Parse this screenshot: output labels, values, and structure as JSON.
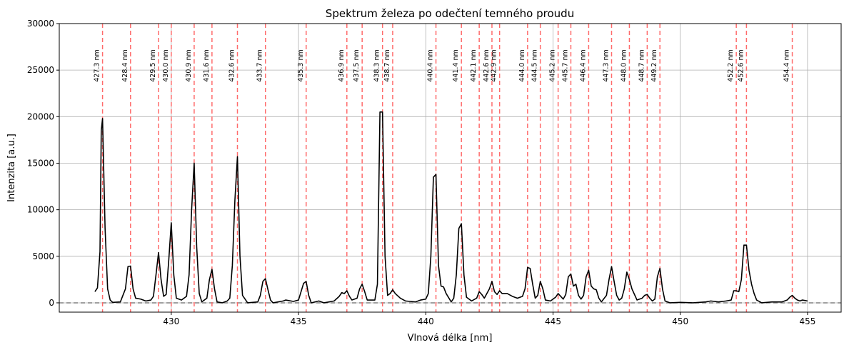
{
  "chart_data": {
    "type": "line",
    "title": "Spektrum železa po odečtení temného proudu",
    "xlabel": "Vlnová délka [nm]",
    "ylabel": "Intenzita [a.u.]",
    "color": "#000000",
    "x": [
      427.0,
      427.1,
      427.2,
      427.25,
      427.3,
      427.4,
      427.5,
      427.6,
      427.7,
      428.0,
      428.2,
      428.3,
      428.4,
      428.5,
      428.6,
      428.8,
      429.0,
      429.2,
      429.3,
      429.4,
      429.5,
      429.6,
      429.7,
      429.8,
      429.9,
      430.0,
      430.1,
      430.2,
      430.4,
      430.6,
      430.7,
      430.8,
      430.9,
      431.0,
      431.1,
      431.2,
      431.4,
      431.5,
      431.6,
      431.7,
      431.8,
      432.0,
      432.2,
      432.3,
      432.4,
      432.5,
      432.6,
      432.7,
      432.8,
      433.0,
      433.4,
      433.5,
      433.6,
      433.7,
      433.8,
      433.9,
      434.0,
      434.4,
      434.5,
      434.8,
      435.0,
      435.1,
      435.2,
      435.3,
      435.4,
      435.5,
      435.8,
      436.0,
      436.4,
      436.6,
      436.7,
      436.8,
      436.9,
      437.0,
      437.1,
      437.3,
      437.4,
      437.5,
      437.6,
      437.7,
      438.0,
      438.1,
      438.2,
      438.3,
      438.4,
      438.5,
      438.6,
      438.7,
      438.8,
      439.0,
      439.2,
      439.6,
      439.8,
      440.0,
      440.1,
      440.2,
      440.3,
      440.4,
      440.5,
      440.6,
      440.7,
      440.8,
      441.0,
      441.1,
      441.2,
      441.3,
      441.4,
      441.5,
      441.6,
      441.8,
      442.0,
      442.1,
      442.2,
      442.3,
      442.5,
      442.6,
      442.7,
      442.8,
      442.9,
      443.0,
      443.2,
      443.4,
      443.6,
      443.8,
      443.9,
      444.0,
      444.1,
      444.2,
      444.3,
      444.4,
      444.5,
      444.6,
      444.7,
      444.9,
      445.1,
      445.2,
      445.3,
      445.4,
      445.5,
      445.6,
      445.7,
      445.8,
      445.9,
      446.0,
      446.1,
      446.2,
      446.3,
      446.4,
      446.5,
      446.6,
      446.7,
      446.8,
      446.9,
      447.1,
      447.2,
      447.3,
      447.4,
      447.5,
      447.6,
      447.7,
      447.8,
      447.9,
      448.0,
      448.1,
      448.2,
      448.3,
      448.5,
      448.6,
      448.7,
      448.8,
      448.9,
      449.0,
      449.1,
      449.2,
      449.3,
      449.4,
      449.6,
      450.0,
      450.5,
      451.0,
      451.2,
      451.5,
      451.8,
      452.0,
      452.1,
      452.2,
      452.3,
      452.4,
      452.5,
      452.6,
      452.7,
      452.8,
      452.9,
      453.0,
      453.2,
      453.6,
      454.0,
      454.2,
      454.3,
      454.4,
      454.5,
      454.6,
      454.7,
      454.8,
      455.0
    ],
    "values": [
      1200,
      1600,
      5500,
      18500,
      19800,
      8000,
      1500,
      300,
      50,
      100,
      1500,
      3900,
      3950,
      1500,
      500,
      400,
      200,
      300,
      700,
      3000,
      5400,
      2500,
      700,
      900,
      4500,
      8600,
      3000,
      500,
      300,
      700,
      3000,
      10000,
      15000,
      6000,
      1000,
      100,
      500,
      2500,
      3600,
      1500,
      100,
      0,
      200,
      500,
      4000,
      11000,
      15700,
      5000,
      800,
      0,
      100,
      800,
      2300,
      2600,
      1400,
      300,
      0,
      200,
      300,
      150,
      300,
      1200,
      2100,
      2300,
      800,
      0,
      200,
      0,
      200,
      700,
      1100,
      1000,
      1300,
      700,
      300,
      500,
      1500,
      2000,
      1200,
      300,
      300,
      2000,
      20500,
      20500,
      5000,
      800,
      1000,
      1400,
      1000,
      500,
      200,
      100,
      300,
      400,
      1000,
      5000,
      13500,
      13800,
      4000,
      1800,
      1700,
      1000,
      100,
      500,
      3000,
      8000,
      8500,
      3000,
      600,
      200,
      500,
      1200,
      900,
      500,
      1500,
      2300,
      1200,
      900,
      1300,
      1000,
      1000,
      700,
      500,
      700,
      1500,
      3800,
      3700,
      2000,
      500,
      800,
      2300,
      1500,
      300,
      200,
      600,
      1000,
      700,
      400,
      900,
      2800,
      3100,
      1800,
      2000,
      800,
      400,
      800,
      2800,
      3500,
      1800,
      1500,
      1400,
      500,
      100,
      800,
      2500,
      3900,
      2300,
      800,
      300,
      500,
      1500,
      3300,
      2500,
      1500,
      900,
      300,
      500,
      800,
      900,
      500,
      200,
      400,
      2800,
      3700,
      1500,
      200,
      0,
      50,
      0,
      100,
      200,
      100,
      200,
      300,
      1300,
      1300,
      1200,
      2500,
      6200,
      6200,
      3500,
      2000,
      1000,
      300,
      0,
      100,
      100,
      300,
      600,
      800,
      500,
      300,
      200,
      300,
      200
    ],
    "xlim": [
      425.6,
      456.32
    ],
    "ylim": [
      -1000,
      30000
    ],
    "xticks": [
      430,
      435,
      440,
      445,
      450,
      455
    ],
    "yticks": [
      0,
      5000,
      10000,
      15000,
      20000,
      25000,
      30000
    ],
    "grid": true,
    "reference_color": "#ff6b6b",
    "reference_lines": [
      {
        "value": 427.3,
        "label": "427.3 nm"
      },
      {
        "value": 428.4,
        "label": "428.4 nm"
      },
      {
        "value": 429.5,
        "label": "429.5 nm"
      },
      {
        "value": 430.0,
        "label": "430.0 nm"
      },
      {
        "value": 430.9,
        "label": "430.9 nm"
      },
      {
        "value": 431.6,
        "label": "431.6 nm"
      },
      {
        "value": 432.6,
        "label": "432.6 nm"
      },
      {
        "value": 433.7,
        "label": "433.7 nm"
      },
      {
        "value": 435.3,
        "label": "435.3 nm"
      },
      {
        "value": 436.9,
        "label": "436.9 nm"
      },
      {
        "value": 437.5,
        "label": "437.5 nm"
      },
      {
        "value": 438.3,
        "label": "438.3 nm"
      },
      {
        "value": 438.7,
        "label": "438.7 nm"
      },
      {
        "value": 440.4,
        "label": "440.4 nm"
      },
      {
        "value": 441.4,
        "label": "441.4 nm"
      },
      {
        "value": 442.1,
        "label": "442.1 nm"
      },
      {
        "value": 442.6,
        "label": "442.6 nm"
      },
      {
        "value": 442.9,
        "label": "442.9 nm"
      },
      {
        "value": 444.0,
        "label": "444.0 nm"
      },
      {
        "value": 444.5,
        "label": "444.5 nm"
      },
      {
        "value": 445.2,
        "label": "445.2 nm"
      },
      {
        "value": 445.7,
        "label": "445.7 nm"
      },
      {
        "value": 446.4,
        "label": "446.4 nm"
      },
      {
        "value": 447.3,
        "label": "447.3 nm"
      },
      {
        "value": 448.0,
        "label": "448.0 nm"
      },
      {
        "value": 448.7,
        "label": "448.7 nm"
      },
      {
        "value": 449.2,
        "label": "449.2 nm"
      },
      {
        "value": 452.2,
        "label": "452.2 nm"
      },
      {
        "value": 452.6,
        "label": "452.6 nm"
      },
      {
        "value": 454.4,
        "label": "454.4 nm"
      }
    ],
    "baseline": 0,
    "baseline_color": "#808080"
  }
}
